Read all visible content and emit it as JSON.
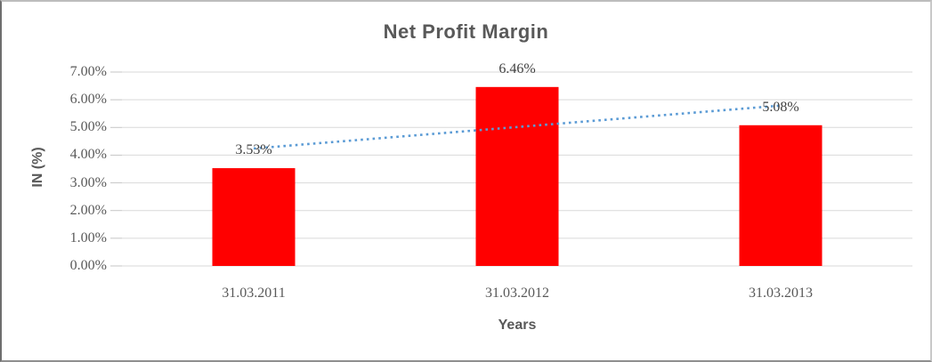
{
  "chart_data": {
    "type": "bar",
    "title": "Net Profit Margin",
    "xlabel": "Years",
    "ylabel": "IN (%)",
    "categories": [
      "31.03.2011",
      "31.03.2012",
      "31.03.2013"
    ],
    "series": [
      {
        "name": "Net Profit Margin",
        "values": [
          3.53,
          6.46,
          5.08
        ]
      }
    ],
    "data_labels": [
      "3.53%",
      "6.46%",
      "5.08%"
    ],
    "y_ticks": [
      "0.00%",
      "1.00%",
      "2.00%",
      "3.00%",
      "4.00%",
      "5.00%",
      "6.00%",
      "7.00%"
    ],
    "ylim": [
      0,
      7
    ],
    "grid": true,
    "legend": "none",
    "trendline": {
      "type": "linear",
      "style": "dotted",
      "start_value": 4.24,
      "end_value": 5.79
    },
    "colors": {
      "bar": "#FF0000",
      "trendline": "#5B9BD5",
      "gridline": "#D9D9D9",
      "tick_mark": "#C6C6C6",
      "title_text": "#595959",
      "axis_text": "#595959",
      "data_label_text": "#404040"
    }
  }
}
